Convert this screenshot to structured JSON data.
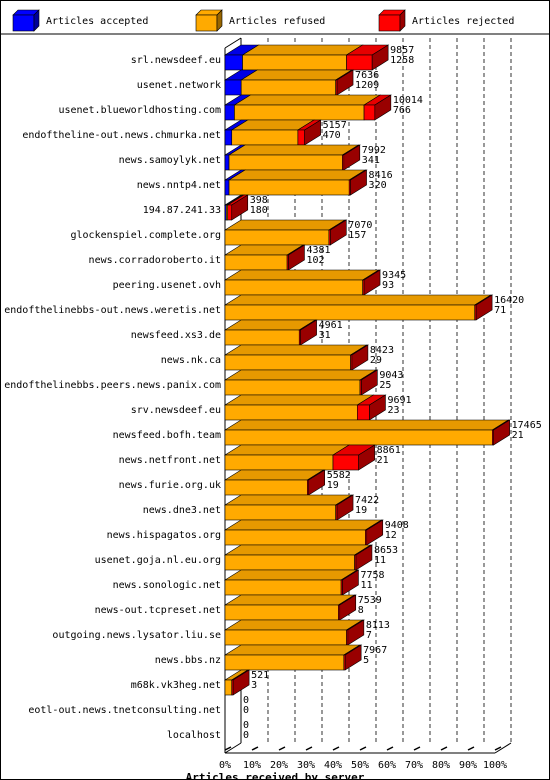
{
  "chart_data": {
    "type": "bar",
    "stacked": true,
    "orientation": "horizontal",
    "title": "Articles received by server",
    "legend_position": "top",
    "xlim": [
      0,
      100
    ],
    "x_ticks": [
      "0%",
      "10%",
      "20%",
      "30%",
      "40%",
      "50%",
      "60%",
      "70%",
      "80%",
      "90%",
      "100%"
    ],
    "series": [
      {
        "key": "accepted",
        "name": "Articles accepted",
        "color": "#0000ff"
      },
      {
        "key": "refused",
        "name": "Articles refused",
        "color": "#ffaa00"
      },
      {
        "key": "rejected",
        "name": "Articles rejected",
        "color": "#ff0000"
      }
    ],
    "categories": [
      {
        "server": "srl.newsdeef.eu",
        "label_top": "9857",
        "label_bottom": "1258",
        "accepted": 6.5,
        "refused": 38.5,
        "rejected": 9.5
      },
      {
        "server": "usenet.network",
        "label_top": "7636",
        "label_bottom": "1209",
        "accepted": 6.0,
        "refused": 35.0,
        "rejected": 0.5
      },
      {
        "server": "usenet.blueworldhosting.com",
        "label_top": "10014",
        "label_bottom": "766",
        "accepted": 3.5,
        "refused": 48.0,
        "rejected": 4.0
      },
      {
        "server": "endoftheline-out.news.chmurka.net",
        "label_top": "5157",
        "label_bottom": "470",
        "accepted": 2.5,
        "refused": 24.5,
        "rejected": 2.5
      },
      {
        "server": "news.samoylyk.net",
        "label_top": "7992",
        "label_bottom": "341",
        "accepted": 1.5,
        "refused": 42.0,
        "rejected": 0.5
      },
      {
        "server": "news.nntp4.net",
        "label_top": "8416",
        "label_bottom": "320",
        "accepted": 1.5,
        "refused": 44.5,
        "rejected": 0.5
      },
      {
        "server": "194.87.241.33",
        "label_top": "398",
        "label_bottom": "180",
        "accepted": 0.5,
        "refused": 0.5,
        "rejected": 1.5
      },
      {
        "server": "glockenspiel.complete.org",
        "label_top": "7070",
        "label_bottom": "157",
        "accepted": 0,
        "refused": 38.5,
        "rejected": 0.5
      },
      {
        "server": "news.corradoroberto.it",
        "label_top": "4381",
        "label_bottom": "102",
        "accepted": 0,
        "refused": 23.0,
        "rejected": 0.5
      },
      {
        "server": "peering.usenet.ovh",
        "label_top": "9345",
        "label_bottom": "93",
        "accepted": 0,
        "refused": 51.0,
        "rejected": 0.5
      },
      {
        "server": "endofthelinebbs-out.news.weretis.net",
        "label_top": "16420",
        "label_bottom": "71",
        "accepted": 0,
        "refused": 92.5,
        "rejected": 0.5
      },
      {
        "server": "newsfeed.xs3.de",
        "label_top": "4961",
        "label_bottom": "31",
        "accepted": 0,
        "refused": 27.5,
        "rejected": 0.5
      },
      {
        "server": "news.nk.ca",
        "label_top": "8423",
        "label_bottom": "29",
        "accepted": 0,
        "refused": 46.5,
        "rejected": 0.5
      },
      {
        "server": "endofthelinebbs.peers.news.panix.com",
        "label_top": "9043",
        "label_bottom": "25",
        "accepted": 0,
        "refused": 50.0,
        "rejected": 0.5
      },
      {
        "server": "srv.newsdeef.eu",
        "label_top": "9691",
        "label_bottom": "23",
        "accepted": 0,
        "refused": 49.0,
        "rejected": 4.5
      },
      {
        "server": "newsfeed.bofh.team",
        "label_top": "17465",
        "label_bottom": "21",
        "accepted": 0,
        "refused": 99.0,
        "rejected": 0.5
      },
      {
        "server": "news.netfront.net",
        "label_top": "8861",
        "label_bottom": "21",
        "accepted": 0,
        "refused": 40.0,
        "rejected": 9.5
      },
      {
        "server": "news.furie.org.uk",
        "label_top": "5582",
        "label_bottom": "19",
        "accepted": 0,
        "refused": 30.5,
        "rejected": 0.5
      },
      {
        "server": "news.dne3.net",
        "label_top": "7422",
        "label_bottom": "19",
        "accepted": 0,
        "refused": 41.0,
        "rejected": 0.5
      },
      {
        "server": "news.hispagatos.org",
        "label_top": "9408",
        "label_bottom": "12",
        "accepted": 0,
        "refused": 52.0,
        "rejected": 0.5
      },
      {
        "server": "usenet.goja.nl.eu.org",
        "label_top": "8653",
        "label_bottom": "11",
        "accepted": 0,
        "refused": 48.0,
        "rejected": 0.5
      },
      {
        "server": "news.sonologic.net",
        "label_top": "7758",
        "label_bottom": "11",
        "accepted": 0,
        "refused": 43.0,
        "rejected": 0.5
      },
      {
        "server": "news-out.tcpreset.net",
        "label_top": "7539",
        "label_bottom": "8",
        "accepted": 0,
        "refused": 42.0,
        "rejected": 0.5
      },
      {
        "server": "outgoing.news.lysator.liu.se",
        "label_top": "8113",
        "label_bottom": "7",
        "accepted": 0,
        "refused": 45.0,
        "rejected": 0.5
      },
      {
        "server": "news.bbs.nz",
        "label_top": "7967",
        "label_bottom": "5",
        "accepted": 0,
        "refused": 44.0,
        "rejected": 0.5
      },
      {
        "server": "m68k.vk3heg.net",
        "label_top": "521",
        "label_bottom": "3",
        "accepted": 0,
        "refused": 2.5,
        "rejected": 0.5
      },
      {
        "server": "eotl-out.news.tnetconsulting.net",
        "label_top": "0",
        "label_bottom": "0",
        "accepted": 0,
        "refused": 0,
        "rejected": 0
      },
      {
        "server": "localhost",
        "label_top": "0",
        "label_bottom": "0",
        "accepted": 0,
        "refused": 0,
        "rejected": 0
      }
    ]
  }
}
